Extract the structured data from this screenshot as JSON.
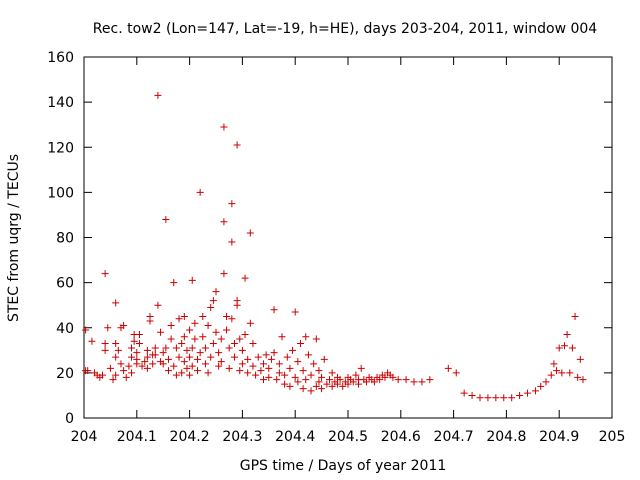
{
  "chart_data": {
    "type": "scatter",
    "title": "Rec. tow2 (Lon=147, Lat=-19, h=HE), days 203-204, 2011, window 004",
    "xlabel": "GPS time / Days of year 2011",
    "ylabel": "STEC from uqrg / TECUs",
    "xlim": [
      204,
      205
    ],
    "ylim": [
      0,
      160
    ],
    "xticks": [
      "204",
      "204.1",
      "204.2",
      "204.3",
      "204.4",
      "204.5",
      "204.6",
      "204.7",
      "204.8",
      "204.9",
      "205"
    ],
    "yticks": [
      "0",
      "20",
      "40",
      "60",
      "80",
      "100",
      "120",
      "140",
      "160"
    ],
    "grid": false,
    "marker": "+",
    "color": "#cc0000",
    "series": [
      {
        "name": "STEC",
        "points": [
          [
            204.003,
            21
          ],
          [
            204.007,
            21
          ],
          [
            204.003,
            39
          ],
          [
            204.015,
            34
          ],
          [
            204.02,
            20
          ],
          [
            204.025,
            19
          ],
          [
            204.03,
            18
          ],
          [
            204.035,
            19
          ],
          [
            204.04,
            30
          ],
          [
            204.04,
            33
          ],
          [
            204.04,
            64
          ],
          [
            204.045,
            40
          ],
          [
            204.05,
            22
          ],
          [
            204.055,
            17
          ],
          [
            204.06,
            19
          ],
          [
            204.06,
            27
          ],
          [
            204.06,
            33
          ],
          [
            204.06,
            51
          ],
          [
            204.065,
            30
          ],
          [
            204.07,
            24
          ],
          [
            204.07,
            40
          ],
          [
            204.075,
            41
          ],
          [
            204.075,
            21
          ],
          [
            204.08,
            18
          ],
          [
            204.085,
            23
          ],
          [
            204.09,
            20
          ],
          [
            204.09,
            27
          ],
          [
            204.09,
            31
          ],
          [
            204.095,
            34
          ],
          [
            204.095,
            37
          ],
          [
            204.1,
            24
          ],
          [
            204.1,
            26
          ],
          [
            204.1,
            29
          ],
          [
            204.105,
            33
          ],
          [
            204.105,
            37
          ],
          [
            204.11,
            23
          ],
          [
            204.115,
            25
          ],
          [
            204.12,
            22
          ],
          [
            204.12,
            27
          ],
          [
            204.12,
            30
          ],
          [
            204.125,
            43
          ],
          [
            204.125,
            45
          ],
          [
            204.13,
            24
          ],
          [
            204.13,
            28
          ],
          [
            204.135,
            28
          ],
          [
            204.135,
            31
          ],
          [
            204.14,
            50
          ],
          [
            204.14,
            143
          ],
          [
            204.145,
            38
          ],
          [
            204.145,
            25
          ],
          [
            204.15,
            24
          ],
          [
            204.15,
            29
          ],
          [
            204.155,
            88
          ],
          [
            204.155,
            31
          ],
          [
            204.16,
            21
          ],
          [
            204.16,
            26
          ],
          [
            204.165,
            35
          ],
          [
            204.165,
            41
          ],
          [
            204.17,
            60
          ],
          [
            204.17,
            23
          ],
          [
            204.175,
            19
          ],
          [
            204.175,
            31
          ],
          [
            204.18,
            27
          ],
          [
            204.18,
            44
          ],
          [
            204.185,
            20
          ],
          [
            204.185,
            33
          ],
          [
            204.19,
            25
          ],
          [
            204.19,
            36
          ],
          [
            204.19,
            45
          ],
          [
            204.195,
            22
          ],
          [
            204.195,
            30
          ],
          [
            204.2,
            19
          ],
          [
            204.2,
            27
          ],
          [
            204.2,
            39
          ],
          [
            204.205,
            23
          ],
          [
            204.205,
            31
          ],
          [
            204.205,
            61
          ],
          [
            204.21,
            35
          ],
          [
            204.21,
            42
          ],
          [
            204.215,
            21
          ],
          [
            204.215,
            26
          ],
          [
            204.22,
            29
          ],
          [
            204.22,
            100
          ],
          [
            204.225,
            45
          ],
          [
            204.225,
            36
          ],
          [
            204.23,
            24
          ],
          [
            204.23,
            31
          ],
          [
            204.235,
            41
          ],
          [
            204.235,
            20
          ],
          [
            204.24,
            27
          ],
          [
            204.24,
            49
          ],
          [
            204.245,
            52
          ],
          [
            204.245,
            33
          ],
          [
            204.25,
            56
          ],
          [
            204.25,
            38
          ],
          [
            204.255,
            23
          ],
          [
            204.255,
            29
          ],
          [
            204.26,
            25
          ],
          [
            204.26,
            35
          ],
          [
            204.265,
            129
          ],
          [
            204.265,
            64
          ],
          [
            204.265,
            87
          ],
          [
            204.27,
            45
          ],
          [
            204.27,
            39
          ],
          [
            204.275,
            31
          ],
          [
            204.275,
            22
          ],
          [
            204.28,
            95
          ],
          [
            204.28,
            78
          ],
          [
            204.28,
            44
          ],
          [
            204.285,
            33
          ],
          [
            204.285,
            27
          ],
          [
            204.29,
            121
          ],
          [
            204.29,
            50
          ],
          [
            204.29,
            52
          ],
          [
            204.295,
            35
          ],
          [
            204.295,
            21
          ],
          [
            204.3,
            24
          ],
          [
            204.3,
            30
          ],
          [
            204.305,
            62
          ],
          [
            204.305,
            37
          ],
          [
            204.31,
            26
          ],
          [
            204.31,
            20
          ],
          [
            204.315,
            82
          ],
          [
            204.315,
            42
          ],
          [
            204.32,
            33
          ],
          [
            204.32,
            23
          ],
          [
            204.325,
            19
          ],
          [
            204.33,
            27
          ],
          [
            204.335,
            21
          ],
          [
            204.34,
            17
          ],
          [
            204.34,
            24
          ],
          [
            204.345,
            28
          ],
          [
            204.35,
            18
          ],
          [
            204.35,
            22
          ],
          [
            204.355,
            26
          ],
          [
            204.36,
            48
          ],
          [
            204.36,
            29
          ],
          [
            204.365,
            17
          ],
          [
            204.37,
            20
          ],
          [
            204.37,
            24
          ],
          [
            204.375,
            36
          ],
          [
            204.38,
            15
          ],
          [
            204.38,
            19
          ],
          [
            204.385,
            27
          ],
          [
            204.39,
            14
          ],
          [
            204.39,
            22
          ],
          [
            204.395,
            30
          ],
          [
            204.4,
            47
          ],
          [
            204.4,
            18
          ],
          [
            204.405,
            16
          ],
          [
            204.405,
            25
          ],
          [
            204.41,
            33
          ],
          [
            204.415,
            13
          ],
          [
            204.415,
            21
          ],
          [
            204.42,
            36
          ],
          [
            204.42,
            17
          ],
          [
            204.425,
            28
          ],
          [
            204.43,
            12
          ],
          [
            204.43,
            19
          ],
          [
            204.435,
            24
          ],
          [
            204.44,
            14
          ],
          [
            204.44,
            35
          ],
          [
            204.445,
            16
          ],
          [
            204.445,
            21
          ],
          [
            204.45,
            13
          ],
          [
            204.45,
            18
          ],
          [
            204.455,
            26
          ],
          [
            204.46,
            15
          ],
          [
            204.465,
            17
          ],
          [
            204.47,
            14
          ],
          [
            204.47,
            20
          ],
          [
            204.475,
            16
          ],
          [
            204.48,
            15
          ],
          [
            204.48,
            18
          ],
          [
            204.485,
            17
          ],
          [
            204.49,
            14
          ],
          [
            204.495,
            16
          ],
          [
            204.5,
            18
          ],
          [
            204.5,
            15
          ],
          [
            204.505,
            17
          ],
          [
            204.51,
            16
          ],
          [
            204.515,
            19
          ],
          [
            204.52,
            17
          ],
          [
            204.52,
            15
          ],
          [
            204.525,
            22
          ],
          [
            204.53,
            17
          ],
          [
            204.535,
            16
          ],
          [
            204.54,
            18
          ],
          [
            204.545,
            17
          ],
          [
            204.55,
            16
          ],
          [
            204.555,
            18
          ],
          [
            204.56,
            17
          ],
          [
            204.565,
            19
          ],
          [
            204.57,
            18
          ],
          [
            204.575,
            20
          ],
          [
            204.58,
            19
          ],
          [
            204.585,
            18
          ],
          [
            204.595,
            17
          ],
          [
            204.61,
            17
          ],
          [
            204.625,
            16
          ],
          [
            204.64,
            16
          ],
          [
            204.655,
            17
          ],
          [
            204.69,
            22
          ],
          [
            204.705,
            20
          ],
          [
            204.72,
            11
          ],
          [
            204.735,
            10
          ],
          [
            204.75,
            9
          ],
          [
            204.765,
            9
          ],
          [
            204.78,
            9
          ],
          [
            204.795,
            9
          ],
          [
            204.81,
            9
          ],
          [
            204.825,
            10
          ],
          [
            204.84,
            11
          ],
          [
            204.855,
            12
          ],
          [
            204.865,
            14
          ],
          [
            204.875,
            16
          ],
          [
            204.885,
            19
          ],
          [
            204.89,
            24
          ],
          [
            204.895,
            21
          ],
          [
            204.9,
            31
          ],
          [
            204.905,
            20
          ],
          [
            204.91,
            32
          ],
          [
            204.915,
            37
          ],
          [
            204.92,
            20
          ],
          [
            204.925,
            31
          ],
          [
            204.93,
            45
          ],
          [
            204.935,
            18
          ],
          [
            204.94,
            26
          ],
          [
            204.945,
            17
          ]
        ]
      }
    ]
  }
}
